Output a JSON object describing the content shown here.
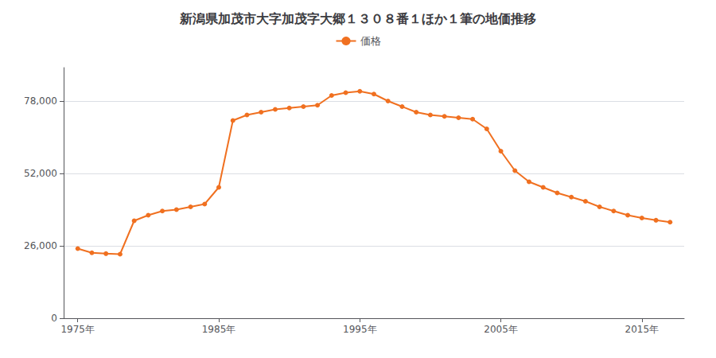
{
  "chart_data": {
    "type": "line",
    "title": "新潟県加茂市大字加茂字大郷１３０８番１ほか１筆の地価推移",
    "x": [
      1975,
      1976,
      1977,
      1978,
      1979,
      1980,
      1981,
      1982,
      1983,
      1984,
      1985,
      1986,
      1987,
      1988,
      1989,
      1990,
      1991,
      1992,
      1993,
      1994,
      1995,
      1996,
      1997,
      1998,
      1999,
      2000,
      2001,
      2002,
      2003,
      2004,
      2005,
      2006,
      2007,
      2008,
      2009,
      2010,
      2011,
      2012,
      2013,
      2014,
      2015,
      2016,
      2017
    ],
    "series": [
      {
        "name": "価格",
        "color": "#F07020",
        "marker": "circle",
        "values": [
          25000,
          23500,
          23200,
          23000,
          35000,
          37000,
          38500,
          39000,
          40000,
          41000,
          47000,
          71000,
          73000,
          74000,
          75000,
          75500,
          76000,
          76500,
          80000,
          81000,
          81500,
          80500,
          78000,
          76000,
          74000,
          73000,
          72500,
          72000,
          71500,
          68000,
          60000,
          53000,
          49000,
          47000,
          45000,
          43500,
          42000,
          40000,
          38500,
          37000,
          36000,
          35200,
          34500
        ]
      }
    ],
    "xlim": [
      1974,
      2018
    ],
    "xticks": [
      {
        "value": 1975,
        "label": "1975年"
      },
      {
        "value": 1985,
        "label": "1985年"
      },
      {
        "value": 1995,
        "label": "1995年"
      },
      {
        "value": 2005,
        "label": "2005年"
      },
      {
        "value": 2015,
        "label": "2015年"
      }
    ],
    "ylim": [
      0,
      90000
    ],
    "yticks": [
      0,
      {
        "value": 26000,
        "label": "26,000"
      },
      {
        "value": 52000,
        "label": "52,000"
      },
      {
        "value": 78000,
        "label": "78,000"
      }
    ],
    "grid": "y",
    "legend": "top"
  }
}
